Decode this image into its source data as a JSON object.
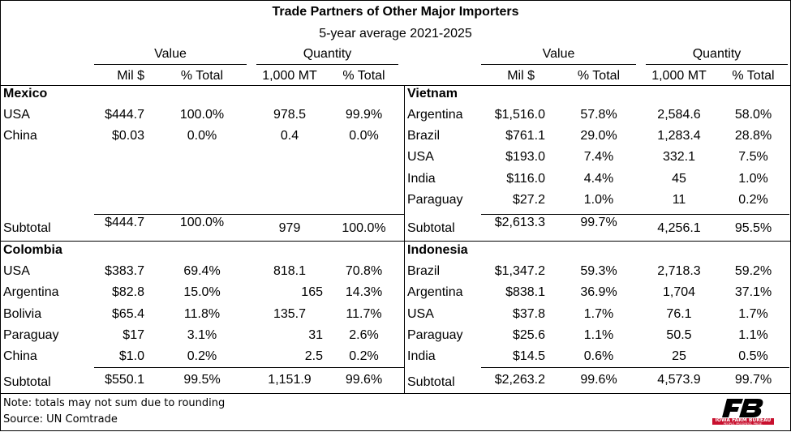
{
  "title": "Trade Partners of Other Major Importers",
  "subtitle": "5-year average 2021-2025",
  "group_headers": {
    "value": "Value",
    "quantity": "Quantity"
  },
  "column_headers": {
    "mil": "Mil $",
    "pct": "% Total",
    "mt": "1,000 MT"
  },
  "subtotal_label": "Subtotal",
  "mexico": {
    "name": "Mexico",
    "rows": [
      {
        "partner": "USA",
        "value": "$444.7",
        "value_pct": "100.0%",
        "qty": "978.5",
        "qty_pct": "99.9%"
      },
      {
        "partner": "China",
        "value": "$0.03",
        "value_pct": "0.0%",
        "qty": "0.4",
        "qty_pct": "0.0%"
      }
    ],
    "subtotal": {
      "value": "$444.7",
      "value_pct": "100.0%",
      "qty": "979",
      "qty_pct": "100.0%"
    }
  },
  "colombia": {
    "name": "Colombia",
    "rows": [
      {
        "partner": "USA",
        "value": "$383.7",
        "value_pct": "69.4%",
        "qty": "818.1",
        "qty_pct": "70.8%"
      },
      {
        "partner": "Argentina",
        "value": "$82.8",
        "value_pct": "15.0%",
        "qty": "165",
        "qty_pct": "14.3%"
      },
      {
        "partner": "Bolivia",
        "value": "$65.4",
        "value_pct": "11.8%",
        "qty": "135.7",
        "qty_pct": "11.7%"
      },
      {
        "partner": "Paraguay",
        "value": "$17",
        "value_pct": "3.1%",
        "qty": "31",
        "qty_pct": "2.6%"
      },
      {
        "partner": "China",
        "value": "$1.0",
        "value_pct": "0.2%",
        "qty": "2.5",
        "qty_pct": "0.2%"
      }
    ],
    "subtotal": {
      "value": "$550.1",
      "value_pct": "99.5%",
      "qty": "1,151.9",
      "qty_pct": "99.6%"
    }
  },
  "vietnam": {
    "name": "Vietnam",
    "rows": [
      {
        "partner": "Argentina",
        "value": "$1,516.0",
        "value_pct": "57.8%",
        "qty": "2,584.6",
        "qty_pct": "58.0%"
      },
      {
        "partner": "Brazil",
        "value": "$761.1",
        "value_pct": "29.0%",
        "qty": "1,283.4",
        "qty_pct": "28.8%"
      },
      {
        "partner": "USA",
        "value": "$193.0",
        "value_pct": "7.4%",
        "qty": "332.1",
        "qty_pct": "7.5%"
      },
      {
        "partner": "India",
        "value": "$116.0",
        "value_pct": "4.4%",
        "qty": "45",
        "qty_pct": "1.0%"
      },
      {
        "partner": "Paraguay",
        "value": "$27.2",
        "value_pct": "1.0%",
        "qty": "11",
        "qty_pct": "0.2%"
      }
    ],
    "subtotal": {
      "value": "$2,613.3",
      "value_pct": "99.7%",
      "qty": "4,256.1",
      "qty_pct": "95.5%"
    }
  },
  "indonesia": {
    "name": "Indonesia",
    "rows": [
      {
        "partner": "Brazil",
        "value": "$1,347.2",
        "value_pct": "59.3%",
        "qty": "2,718.3",
        "qty_pct": "59.2%"
      },
      {
        "partner": "Argentina",
        "value": "$838.1",
        "value_pct": "36.9%",
        "qty": "1,704",
        "qty_pct": "37.1%"
      },
      {
        "partner": "USA",
        "value": "$37.8",
        "value_pct": "1.7%",
        "qty": "76.1",
        "qty_pct": "1.7%"
      },
      {
        "partner": "Paraguay",
        "value": "$25.6",
        "value_pct": "1.1%",
        "qty": "50.5",
        "qty_pct": "1.1%"
      },
      {
        "partner": "India",
        "value": "$14.5",
        "value_pct": "0.6%",
        "qty": "25",
        "qty_pct": "0.5%"
      }
    ],
    "subtotal": {
      "value": "$2,263.2",
      "value_pct": "99.6%",
      "qty": "4,573.9",
      "qty_pct": "99.7%"
    }
  },
  "notes": {
    "rounding": "Note: totals may not sum due to rounding",
    "source": "Source: UN Comtrade"
  },
  "logo": {
    "text": "IOWA FARM BUREAU",
    "tagline": "PEOPLE. PROGRESS. PRIDE.",
    "color": "#c8102e"
  }
}
